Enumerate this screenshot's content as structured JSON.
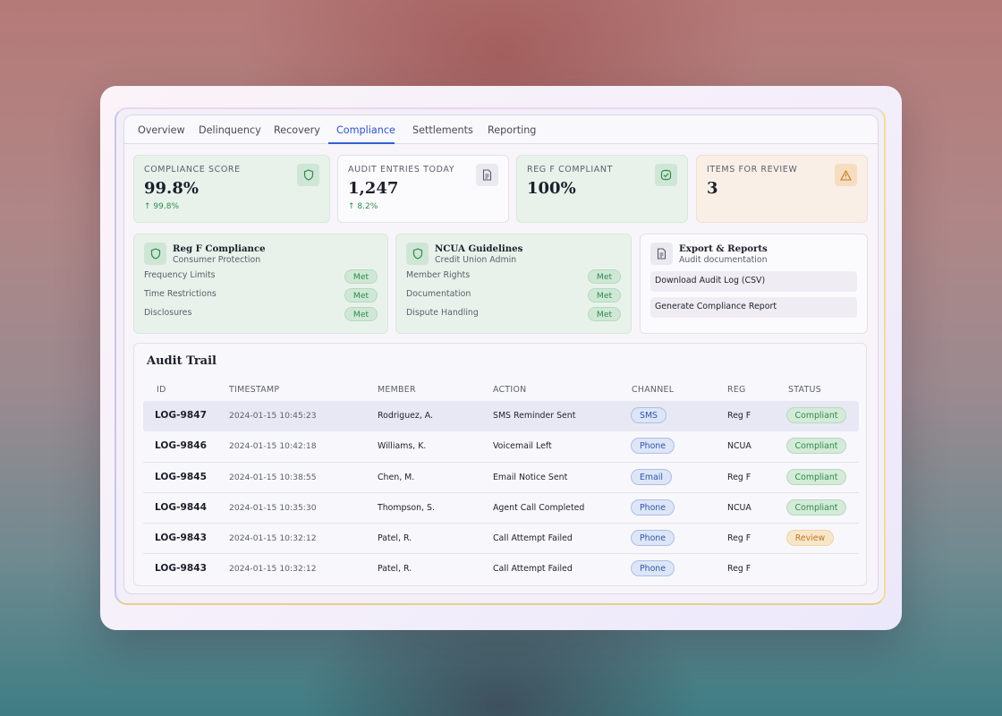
{
  "tabs": [
    "Overview",
    "Delinquency",
    "Recovery",
    "Compliance",
    "Settlements",
    "Reporting"
  ],
  "active_tab": "Compliance",
  "kpis": [
    {
      "label": "COMPLIANCE SCORE",
      "value": "99.8%",
      "delta": "↑ 99.8%",
      "icon": "shield-icon"
    },
    {
      "label": "AUDIT ENTRIES TODAY",
      "value": "1,247",
      "delta": "↑ 8.2%",
      "icon": "document-icon"
    },
    {
      "label": "REG F COMPLIANT",
      "value": "100%",
      "delta": "",
      "icon": "check-badge-icon"
    },
    {
      "label": "ITEMS FOR REVIEW",
      "value": "3",
      "delta": "",
      "icon": "warning-icon"
    }
  ],
  "cards": {
    "regf": {
      "title": "Reg F Compliance",
      "subtitle": "Consumer Protection",
      "items": [
        {
          "label": "Frequency Limits",
          "status": "Met"
        },
        {
          "label": "Time Restrictions",
          "status": "Met"
        },
        {
          "label": "Disclosures",
          "status": "Met"
        }
      ]
    },
    "ncua": {
      "title": "NCUA Guidelines",
      "subtitle": "Credit Union Admin",
      "items": [
        {
          "label": "Member Rights",
          "status": "Met"
        },
        {
          "label": "Documentation",
          "status": "Met"
        },
        {
          "label": "Dispute Handling",
          "status": "Met"
        }
      ]
    },
    "export": {
      "title": "Export & Reports",
      "subtitle": "Audit documentation",
      "buttons": [
        "Download Audit Log (CSV)",
        "Generate Compliance Report"
      ]
    }
  },
  "audit": {
    "title": "Audit Trail",
    "columns": [
      "ID",
      "TIMESTAMP",
      "MEMBER",
      "ACTION",
      "CHANNEL",
      "REG",
      "STATUS"
    ],
    "rows": [
      {
        "id": "LOG-9847",
        "timestamp": "2024-01-15 10:45:23",
        "member": "Rodriguez, A.",
        "action": "SMS Reminder Sent",
        "channel": "SMS",
        "reg": "Reg F",
        "status": "Compliant"
      },
      {
        "id": "LOG-9846",
        "timestamp": "2024-01-15 10:42:18",
        "member": "Williams, K.",
        "action": "Voicemail Left",
        "channel": "Phone",
        "reg": "NCUA",
        "status": "Compliant"
      },
      {
        "id": "LOG-9845",
        "timestamp": "2024-01-15 10:38:55",
        "member": "Chen, M.",
        "action": "Email Notice Sent",
        "channel": "Email",
        "reg": "Reg F",
        "status": "Compliant"
      },
      {
        "id": "LOG-9844",
        "timestamp": "2024-01-15 10:35:30",
        "member": "Thompson, S.",
        "action": "Agent Call Completed",
        "channel": "Phone",
        "reg": "NCUA",
        "status": "Compliant"
      },
      {
        "id": "LOG-9843",
        "timestamp": "2024-01-15 10:32:12",
        "member": "Patel, R.",
        "action": "Call Attempt Failed",
        "channel": "Phone",
        "reg": "Reg F",
        "status": "Review"
      },
      {
        "id": "LOG-9843",
        "timestamp": "2024-01-15 10:32:12",
        "member": "Patel, R.",
        "action": "Call Attempt Failed",
        "channel": "Phone",
        "reg": "Reg F",
        "status": ""
      }
    ]
  },
  "colors": {
    "accent": "#2e55c8",
    "success": "#2f8a4c",
    "warning": "#c07a20"
  }
}
